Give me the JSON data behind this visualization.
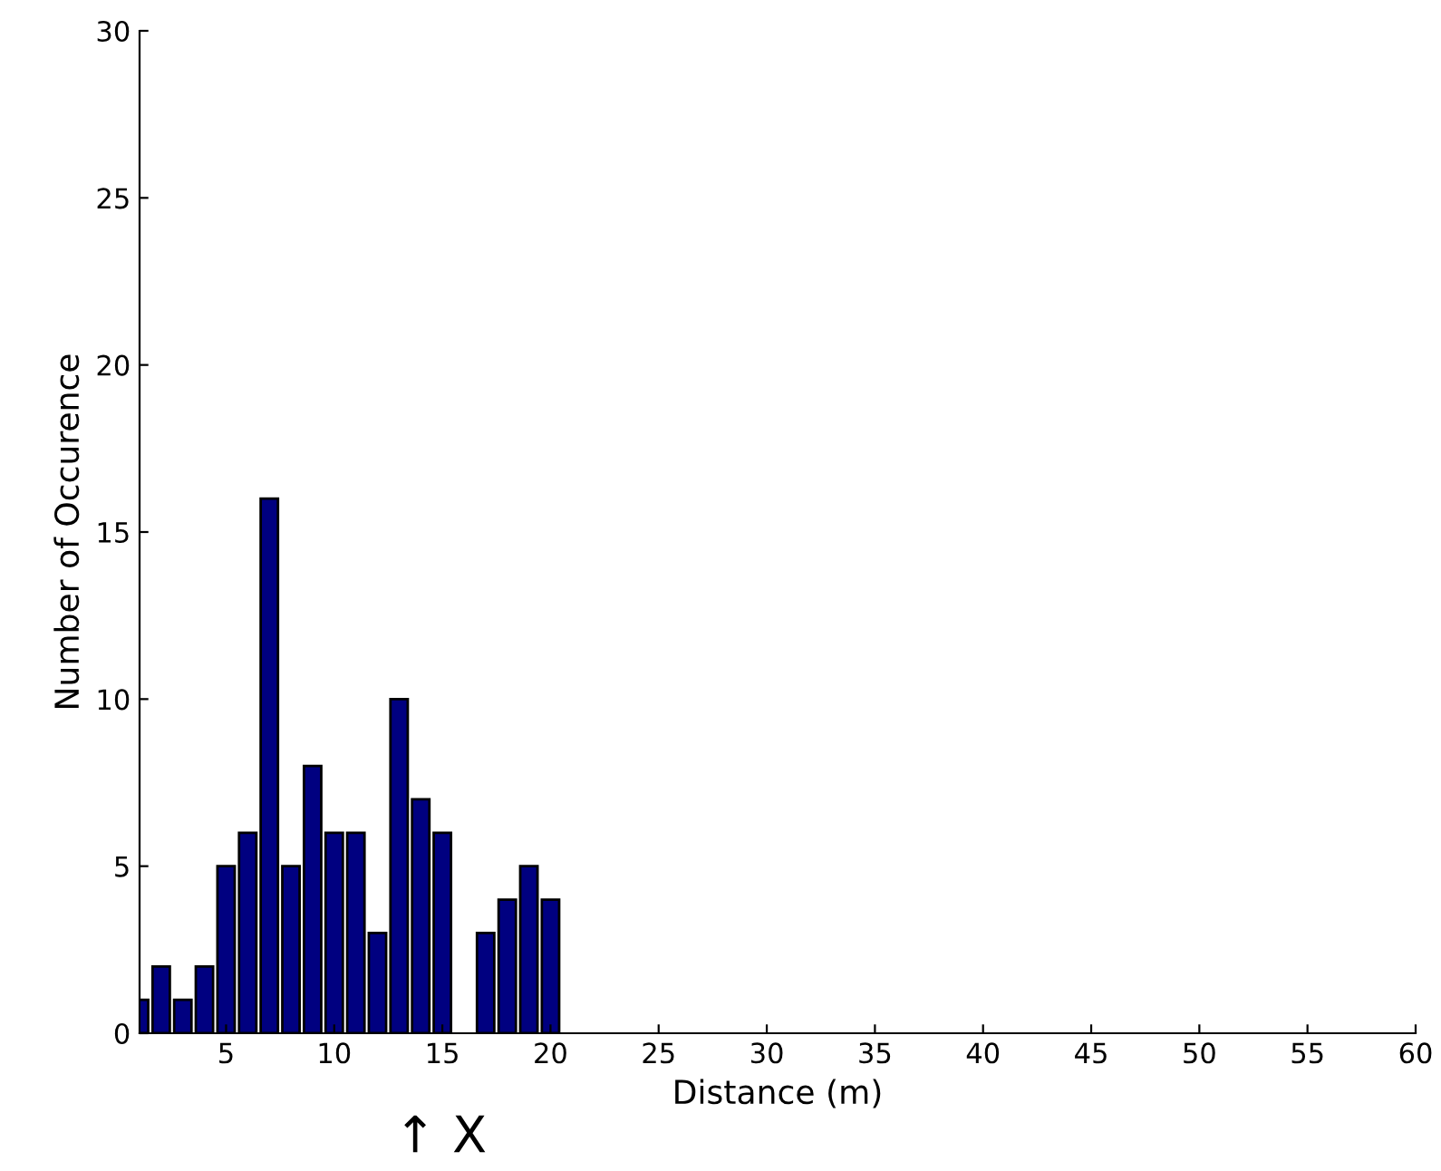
{
  "chart_data": {
    "type": "bar",
    "xlabel": "Distance (m)",
    "ylabel": "Number of Occurence",
    "x": [
      1,
      2,
      3,
      4,
      5,
      6,
      7,
      8,
      9,
      10,
      11,
      12,
      13,
      14,
      15,
      16,
      17,
      18,
      19,
      20
    ],
    "values": [
      1,
      2,
      1,
      2,
      5,
      6,
      16,
      5,
      8,
      6,
      6,
      3,
      10,
      7,
      6,
      null,
      3,
      4,
      5,
      4
    ],
    "color": "#000080",
    "xlim": [
      1,
      60
    ],
    "xticks": [
      5,
      10,
      15,
      20,
      25,
      30,
      35,
      40,
      45,
      50,
      55,
      60
    ],
    "ylim": [
      0,
      30
    ],
    "yticks": [
      0,
      5,
      10,
      15,
      20,
      25,
      30
    ],
    "annotations": [
      "↑ X"
    ],
    "grid": false,
    "legend": false
  }
}
